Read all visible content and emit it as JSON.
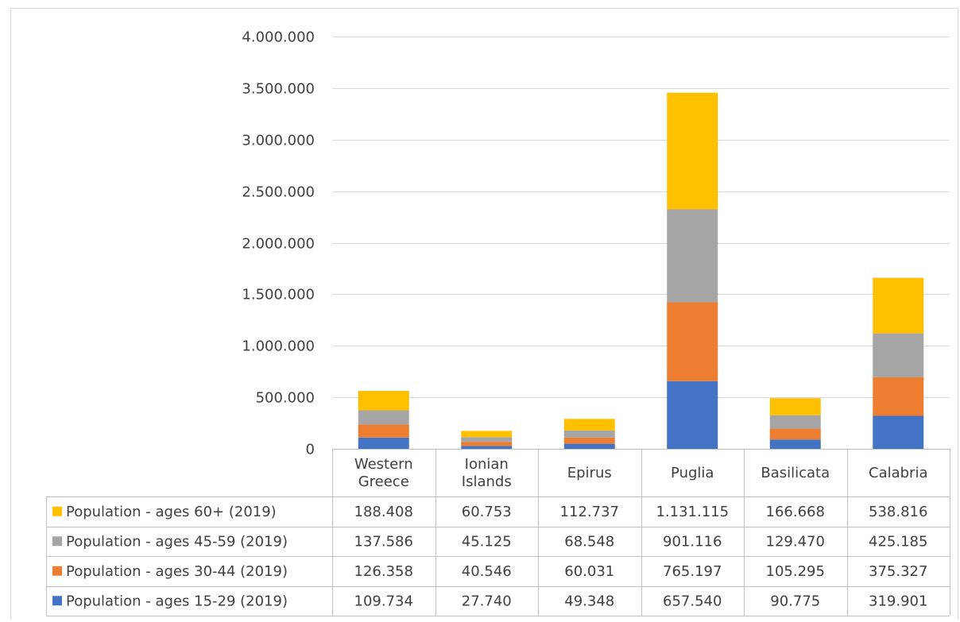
{
  "chart_data": {
    "type": "bar",
    "stacked": true,
    "categories": [
      [
        "Western",
        "Greece"
      ],
      [
        "Ionian",
        "Islands"
      ],
      [
        "Epirus"
      ],
      [
        "Puglia"
      ],
      [
        "Basilicata"
      ],
      [
        "Calabria"
      ]
    ],
    "series": [
      {
        "name": "Population - ages 15-29 (2019)",
        "color": "#4472c4",
        "values": [
          109734,
          27740,
          49348,
          657540,
          90775,
          319901
        ],
        "labels": [
          "109.734",
          "27.740",
          "49.348",
          "657.540",
          "90.775",
          "319.901"
        ]
      },
      {
        "name": "Population - ages 30-44 (2019)",
        "color": "#ed7d31",
        "values": [
          126358,
          40546,
          60031,
          765197,
          105295,
          375327
        ],
        "labels": [
          "126.358",
          "40.546",
          "60.031",
          "765.197",
          "105.295",
          "375.327"
        ]
      },
      {
        "name": "Population - ages 45-59 (2019)",
        "color": "#a5a5a5",
        "values": [
          137586,
          45125,
          68548,
          901116,
          129470,
          425185
        ],
        "labels": [
          "137.586",
          "45.125",
          "68.548",
          "901.116",
          "129.470",
          "425.185"
        ]
      },
      {
        "name": "Population - ages 60+ (2019)",
        "color": "#ffc000",
        "values": [
          188408,
          60753,
          112737,
          1131115,
          166668,
          538816
        ],
        "labels": [
          "188.408",
          "60.753",
          "112.737",
          "1.131.115",
          "166.668",
          "538.816"
        ]
      }
    ],
    "table_row_order": [
      3,
      2,
      1,
      0
    ],
    "ylim": [
      0,
      4000000
    ],
    "yticks": [
      {
        "value": 0,
        "label": "0"
      },
      {
        "value": 500000,
        "label": "500.000"
      },
      {
        "value": 1000000,
        "label": "1.000.000"
      },
      {
        "value": 1500000,
        "label": "1.500.000"
      },
      {
        "value": 2000000,
        "label": "2.000.000"
      },
      {
        "value": 2500000,
        "label": "2.500.000"
      },
      {
        "value": 3000000,
        "label": "3.000.000"
      },
      {
        "value": 3500000,
        "label": "3.500.000"
      },
      {
        "value": 4000000,
        "label": "4.000.000"
      }
    ],
    "grid": true,
    "legend": "data-table",
    "gridline_color": "#d9d9d9",
    "table_line_color": "#bfbfbf",
    "frame_color": "#d9d9d9"
  }
}
